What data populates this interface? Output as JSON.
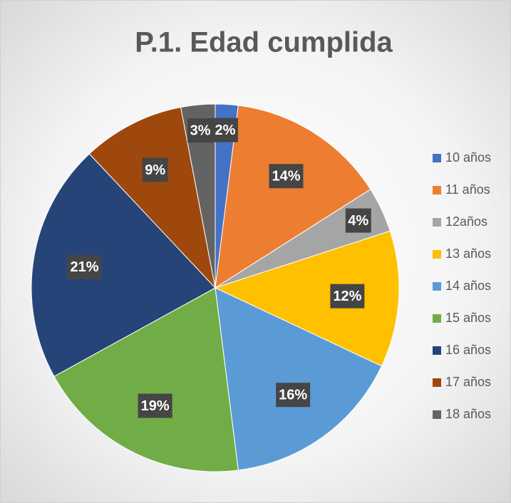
{
  "chart_data": {
    "type": "pie",
    "title": "P.1. Edad cumplida",
    "categories": [
      "10 años",
      "11 años",
      "12años",
      "13 años",
      "14 años",
      "15 años",
      "16 años",
      "17 años",
      "18 años"
    ],
    "values": [
      2,
      14,
      4,
      12,
      16,
      19,
      21,
      9,
      3
    ],
    "value_labels": [
      "2%",
      "14%",
      "4%",
      "12%",
      "16%",
      "19%",
      "21%",
      "9%",
      "3%"
    ],
    "colors": [
      "#4472c4",
      "#ed7d31",
      "#a5a5a5",
      "#ffc000",
      "#5b9bd5",
      "#70ad47",
      "#264478",
      "#9e480e",
      "#636363"
    ],
    "legend": "right"
  }
}
